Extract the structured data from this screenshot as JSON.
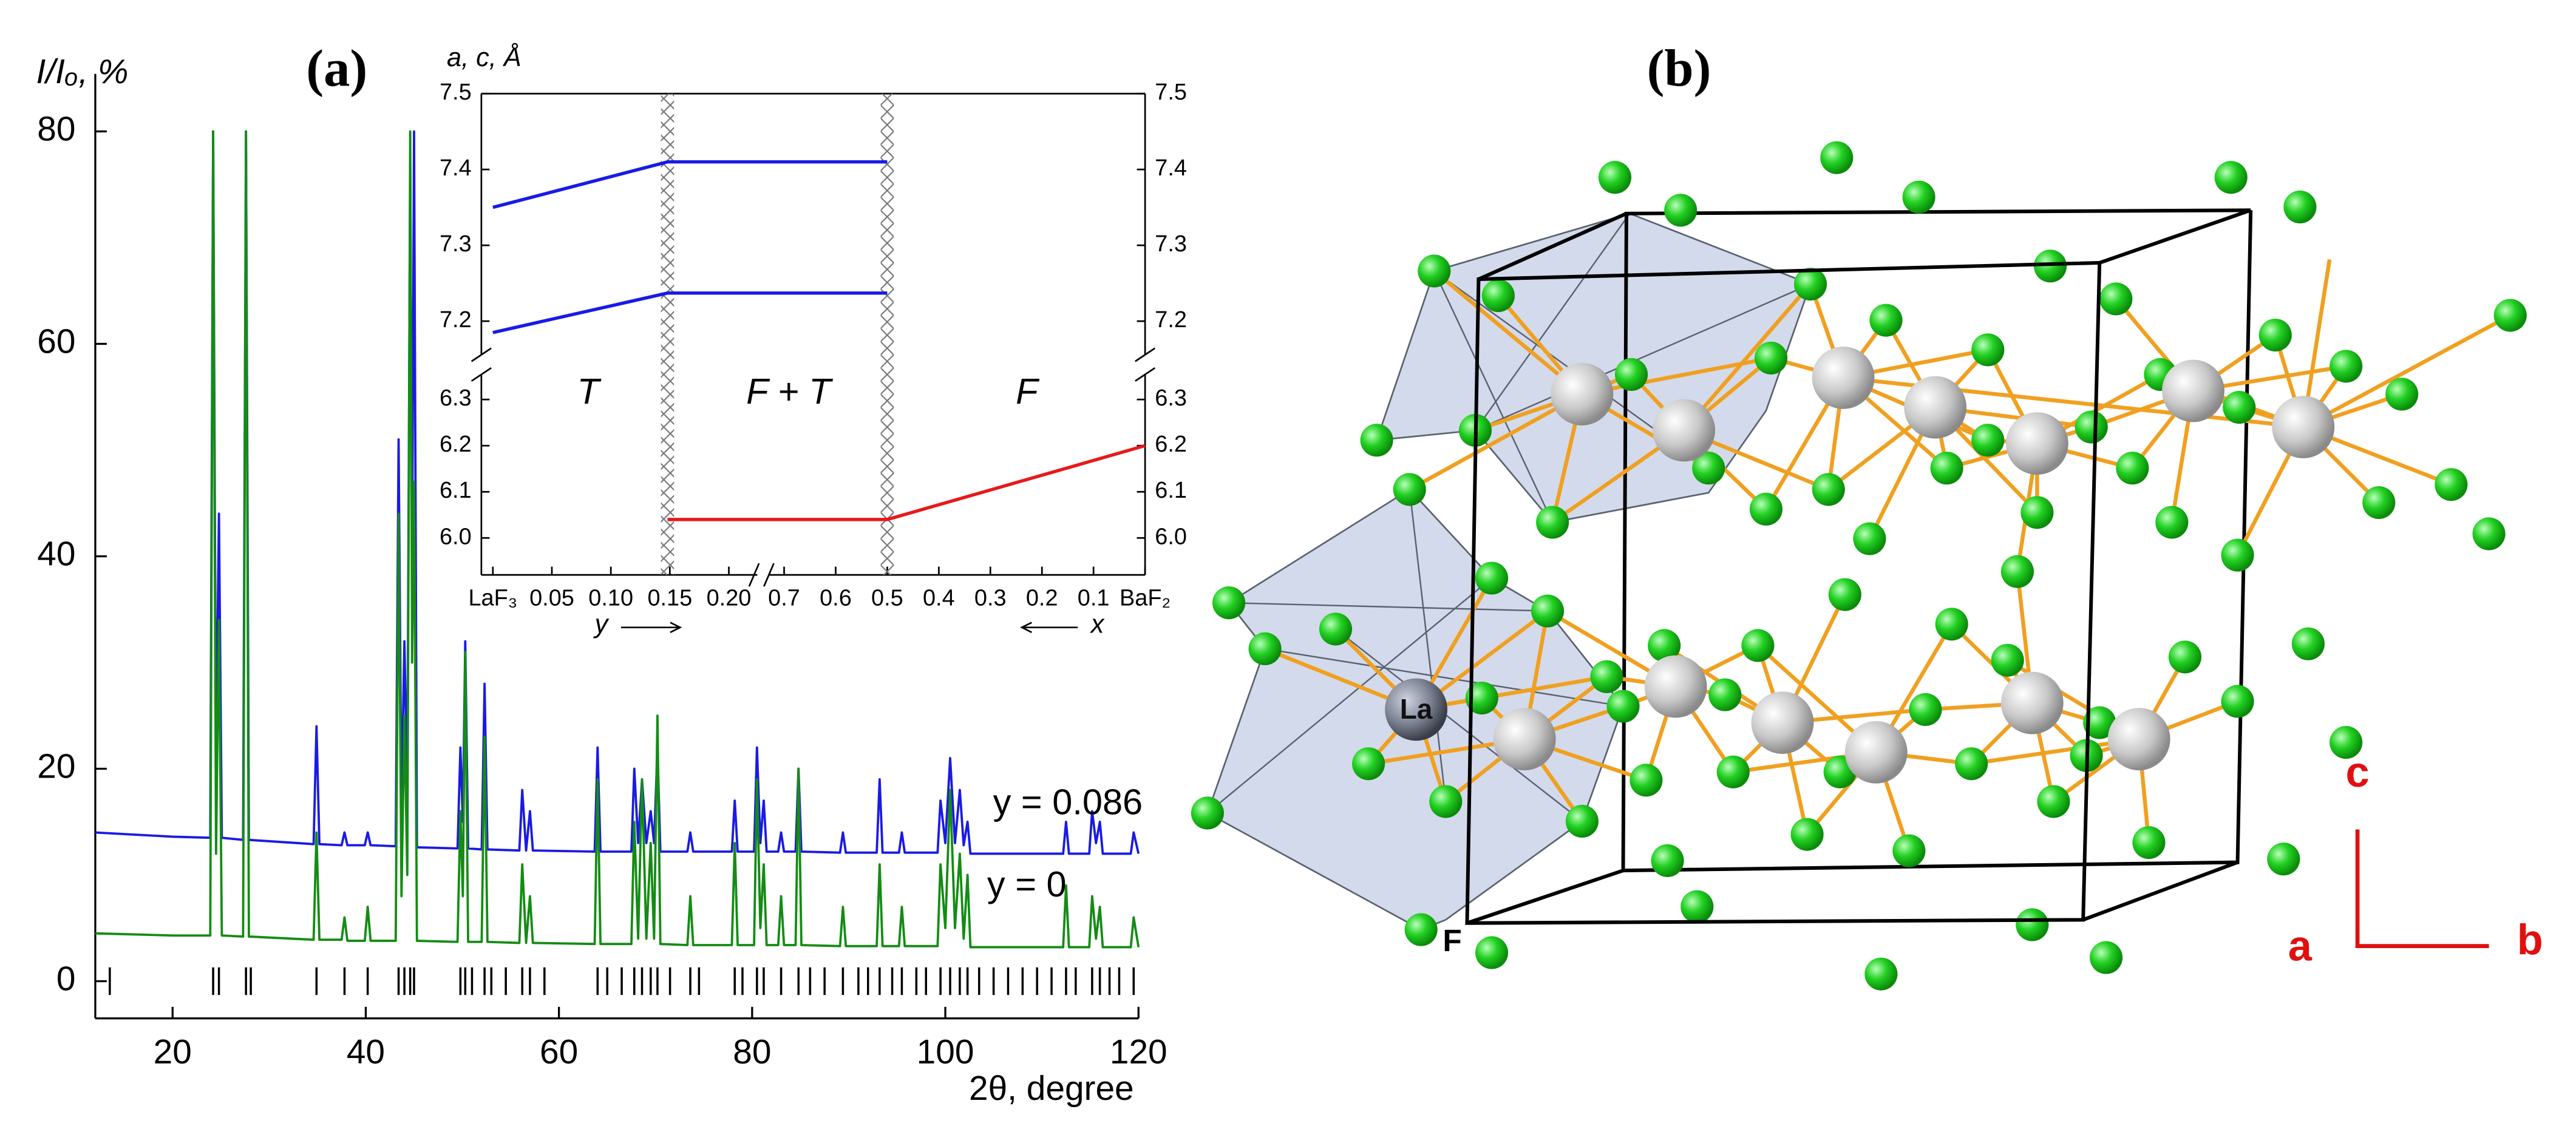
{
  "chart_data": [
    {
      "type": "line",
      "title": "(a)",
      "y_label": "I/Iₒ, %",
      "x_label": "2θ, degree",
      "xlim": [
        12,
        120
      ],
      "xticks": [
        20,
        40,
        60,
        80,
        100,
        120
      ],
      "ylim": [
        -3.5,
        80
      ],
      "yticks": [
        0,
        20,
        40,
        60,
        80
      ],
      "x": [
        12,
        20,
        23.9,
        24.2,
        24.5,
        24.8,
        25.1,
        27.3,
        27.6,
        27.9,
        34.6,
        34.9,
        35.2,
        37.5,
        37.8,
        38.1,
        39.9,
        40.2,
        40.5,
        43.1,
        43.4,
        43.7,
        44.0,
        44.3,
        44.6,
        44.8,
        45.0,
        45.3,
        49.5,
        49.8,
        50.05,
        50.3,
        50.6,
        52.0,
        52.3,
        52.6,
        55.9,
        56.2,
        56.6,
        57.0,
        57.3,
        63.7,
        64.0,
        64.3,
        67.5,
        67.8,
        68.2,
        68.6,
        69.05,
        69.5,
        69.85,
        70.2,
        70.5,
        73.3,
        73.6,
        73.9,
        77.9,
        78.2,
        78.5,
        80.2,
        80.5,
        80.85,
        81.2,
        81.5,
        82.7,
        83.0,
        83.3,
        84.5,
        84.8,
        85.1,
        89.1,
        89.4,
        89.7,
        92.9,
        93.2,
        93.5,
        95.2,
        95.5,
        95.8,
        99.2,
        99.5,
        100.0,
        100.5,
        101.0,
        101.5,
        101.9,
        102.3,
        102.6,
        107,
        112.2,
        112.5,
        112.8,
        114.9,
        115.2,
        115.6,
        116.0,
        116.3,
        119.2,
        119.5,
        120
      ],
      "series": [
        {
          "name": "y = 0.086",
          "color": "#1a1ae6",
          "values": [
            14,
            13.6,
            13.5,
            80,
            20,
            44,
            13.5,
            13.3,
            80,
            13.3,
            12.9,
            24,
            12.9,
            12.8,
            14,
            12.8,
            12.8,
            14,
            12.8,
            12.7,
            51,
            16,
            32,
            18,
            77,
            40,
            80,
            12.6,
            12.5,
            22,
            15,
            32,
            12.5,
            12.4,
            28,
            12.4,
            12.3,
            18,
            12.3,
            16,
            12.3,
            12.2,
            22,
            12.2,
            12.2,
            20,
            13,
            19,
            13,
            16,
            13,
            22,
            12.2,
            12.2,
            14,
            12.2,
            12.2,
            17,
            12.2,
            12.2,
            22,
            13,
            17,
            12.2,
            12.2,
            14,
            12.2,
            12.2,
            20,
            12.2,
            12.1,
            14,
            12.1,
            12.1,
            19,
            12.1,
            12.1,
            14,
            12.1,
            12.1,
            17,
            13,
            21,
            13,
            18,
            12.8,
            15,
            12,
            12,
            12,
            15,
            12,
            12,
            16,
            13,
            15,
            12,
            12,
            14,
            12
          ]
        },
        {
          "name": "y = 0",
          "color": "#148c14",
          "values": [
            4.5,
            4.3,
            4.3,
            80,
            12,
            34,
            4.3,
            4.2,
            80,
            4.2,
            3.9,
            14,
            3.9,
            3.9,
            6,
            3.8,
            3.8,
            7,
            3.8,
            3.8,
            44,
            8,
            25,
            10,
            80,
            30,
            47,
            3.8,
            3.7,
            16,
            8,
            31,
            3.7,
            3.7,
            23,
            3.7,
            3.6,
            11,
            3.6,
            8,
            3.6,
            3.5,
            19,
            3.5,
            3.5,
            15,
            4,
            19,
            4,
            13,
            4,
            25,
            3.5,
            3.4,
            8,
            3.4,
            3.4,
            13,
            3.4,
            3.4,
            19,
            5,
            11,
            3.4,
            3.4,
            8,
            3.4,
            3.4,
            20,
            3.4,
            3.3,
            7,
            3.3,
            3.3,
            11,
            3.3,
            3.3,
            7,
            3.3,
            3.3,
            11,
            5,
            18,
            5,
            12,
            4,
            10,
            3.2,
            3.2,
            3.2,
            9,
            3.2,
            3.2,
            8,
            4,
            7,
            3.2,
            3.2,
            6,
            3.2
          ]
        }
      ],
      "reflections": [
        13.5,
        24.2,
        24.8,
        27.6,
        28.1,
        34.9,
        37.8,
        40.2,
        43.4,
        44.0,
        44.6,
        45.0,
        49.8,
        50.3,
        51.0,
        52.3,
        53.0,
        54.5,
        56.2,
        57.0,
        58.5,
        64.0,
        65.0,
        66.5,
        67.8,
        68.6,
        69.5,
        70.2,
        71.5,
        73.6,
        74.5,
        78.2,
        79.0,
        80.5,
        81.2,
        83.0,
        84.8,
        86.0,
        87.5,
        89.4,
        91.0,
        92.0,
        93.2,
        94.5,
        95.5,
        97.0,
        98.0,
        99.5,
        100.5,
        101.5,
        102.3,
        103.5,
        105.0,
        106.5,
        108.0,
        109.5,
        111.0,
        112.5,
        113.5,
        115.2,
        116.0,
        117.0,
        118.0,
        119.5
      ],
      "reflection_color": "#000000"
    },
    {
      "type": "line",
      "y_label": "a, c, Å",
      "x_segments": [
        {
          "label": "y",
          "xlim": [
            0,
            0.22
          ],
          "xticks": [
            {
              "value": 0,
              "label": "LaF₃"
            },
            0.05,
            {
              "value": 0.1,
              "label": "0.10"
            },
            0.15,
            {
              "value": 0.2,
              "label": "0.20"
            }
          ]
        },
        {
          "label": "x",
          "xlim": [
            0.72,
            0
          ],
          "xticks": [
            0.7,
            0.6,
            0.5,
            0.4,
            0.3,
            0.2,
            0.1,
            {
              "value": 0,
              "label": "BaF₂"
            }
          ]
        }
      ],
      "y_segments": [
        {
          "ylim": [
            7.16,
            7.5
          ],
          "yticks": [
            7.2,
            7.3,
            7.4,
            7.5
          ]
        },
        {
          "ylim": [
            5.92,
            6.34
          ],
          "yticks": [
            {
              "value": 6,
              "label": "6.0"
            },
            6.1,
            6.2,
            6.3
          ]
        }
      ],
      "series": [
        {
          "color": "#1a1ae6",
          "x": [
            0,
            0.148,
            0.5
          ],
          "x_segment": [
            0,
            0,
            1
          ],
          "y_segment": 0,
          "values": [
            7.35,
            7.41,
            7.41
          ]
        },
        {
          "color": "#1a1ae6",
          "x": [
            0,
            0.148,
            0.5
          ],
          "x_segment": [
            0,
            0,
            1
          ],
          "y_segment": 0,
          "values": [
            7.185,
            7.237,
            7.237
          ]
        },
        {
          "color": "#e61a1a",
          "x": [
            0.148,
            0.5,
            0
          ],
          "x_segment": [
            0,
            1,
            1
          ],
          "y_segment": 1,
          "values": [
            6.04,
            6.04,
            6.2
          ]
        }
      ],
      "boundaries": [
        {
          "x": 0.148,
          "x_segment": 0
        },
        {
          "x": 0.5,
          "x_segment": 1
        }
      ],
      "annotations": [
        "T",
        "F + T",
        "F"
      ]
    }
  ],
  "structure": {
    "title": "(b)",
    "atom_labels": [
      "La",
      "F"
    ],
    "axes": [
      "a",
      "b",
      "c"
    ],
    "axis_color": "#e01010"
  }
}
